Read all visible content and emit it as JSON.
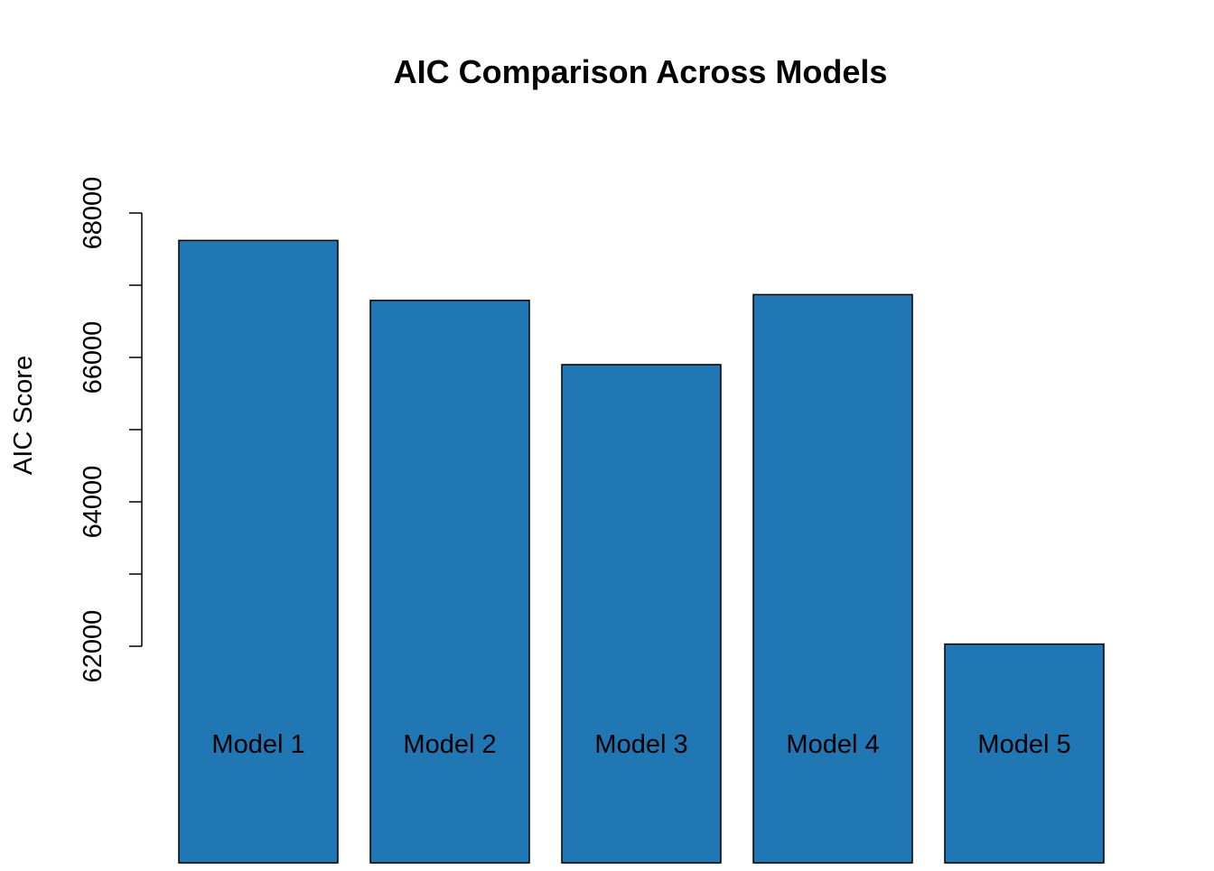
{
  "chart_data": {
    "type": "bar",
    "title": "AIC Comparison Across Models",
    "xlabel": "",
    "ylabel": "AIC Score",
    "categories": [
      "Model 1",
      "Model 2",
      "Model 3",
      "Model 4",
      "Model 5"
    ],
    "values": [
      67620,
      66790,
      65900,
      66870,
      62030
    ],
    "ylim": [
      59000,
      68000
    ],
    "yticks": [
      62000,
      63000,
      64000,
      65000,
      66000,
      67000,
      68000
    ],
    "ytick_labels": [
      "62000",
      "",
      "64000",
      "",
      "66000",
      "",
      "68000"
    ],
    "bar_color": "#2077B4",
    "bar_border_color": "#000000",
    "grid": false,
    "legend": "none"
  }
}
